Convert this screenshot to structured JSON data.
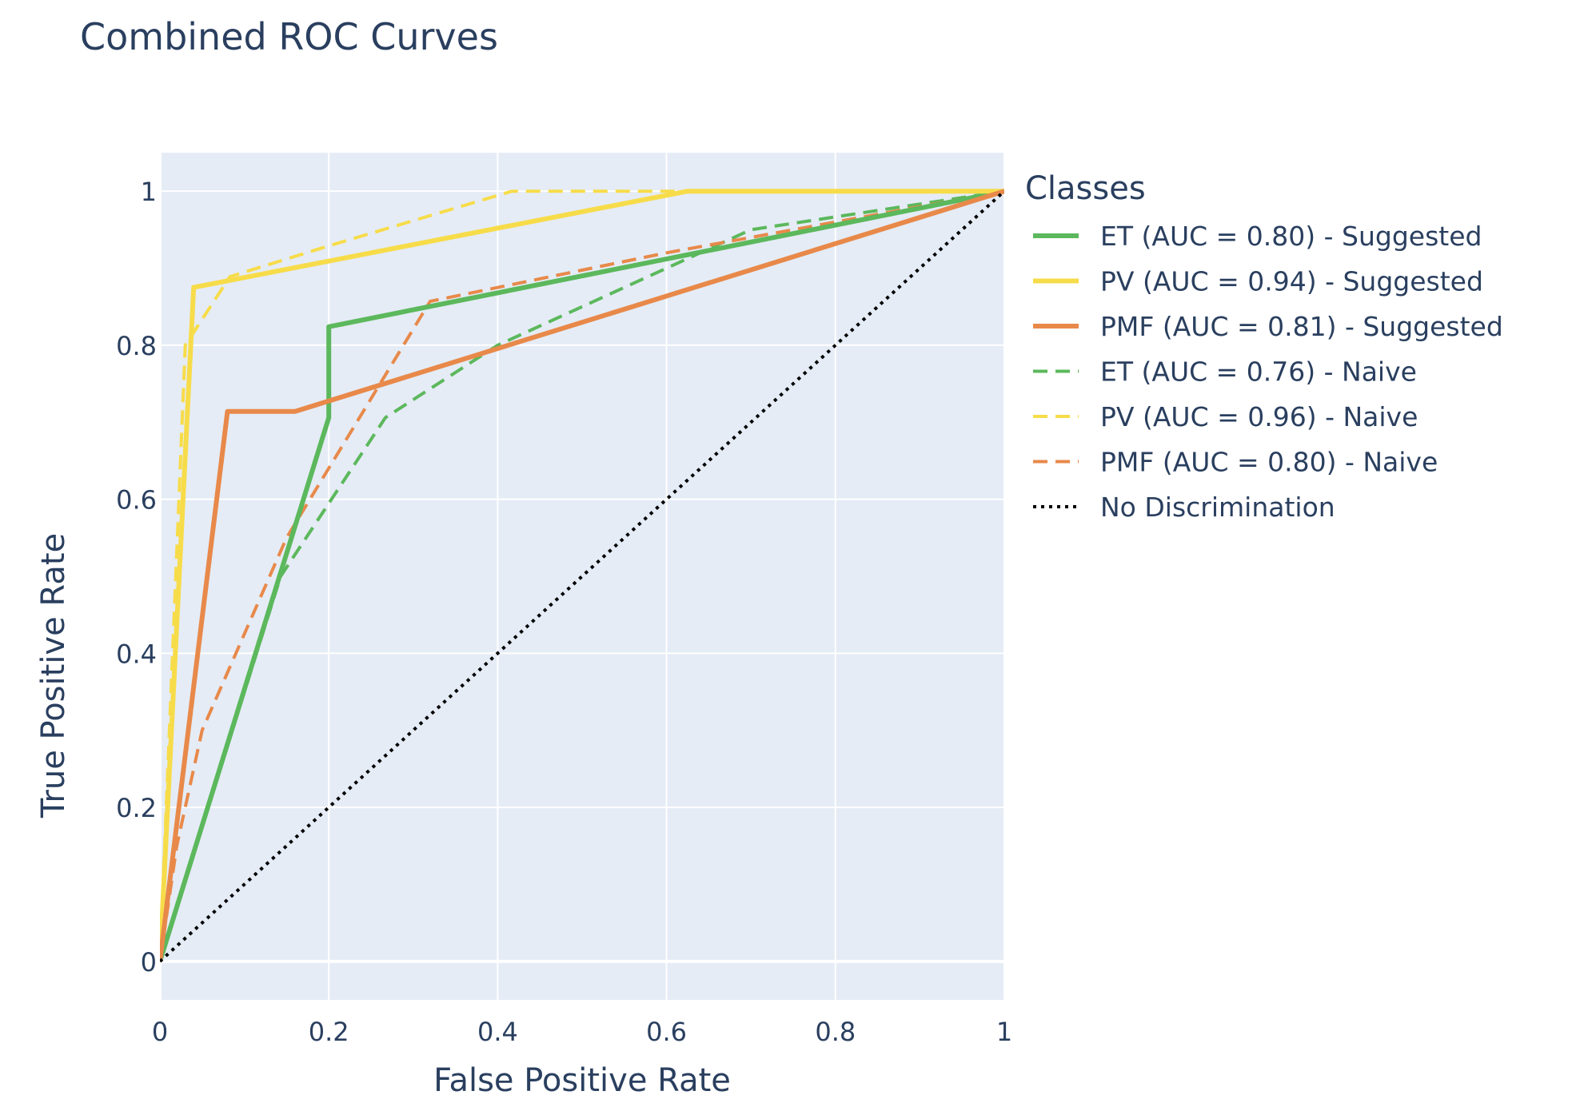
{
  "chart_data": {
    "type": "line",
    "title": "Combined ROC Curves",
    "xlabel": "False Positive Rate",
    "ylabel": "True Positive Rate",
    "xlim": [
      0,
      1
    ],
    "ylim": [
      -0.05,
      1.05
    ],
    "xticks": [
      0,
      0.2,
      0.4,
      0.6,
      0.8,
      1
    ],
    "xtick_labels": [
      "0",
      "0.2",
      "0.4",
      "0.6",
      "0.8",
      "1"
    ],
    "yticks": [
      0,
      0.2,
      0.4,
      0.6,
      0.8,
      1
    ],
    "ytick_labels": [
      "0",
      "0.2",
      "0.4",
      "0.6",
      "0.8",
      "1"
    ],
    "grid": true,
    "plot_background": "#e5ecf6",
    "legend": {
      "title": "Classes",
      "placement": "right"
    },
    "series": [
      {
        "name": "ET (AUC = 0.80) - Suggested",
        "color": "#5cb85c",
        "dash": "solid",
        "x": [
          0,
          0.2,
          0.2,
          1
        ],
        "y": [
          0,
          0.706,
          0.824,
          1
        ]
      },
      {
        "name": "PV (AUC = 0.94) - Suggested",
        "color": "#f7dc4a",
        "dash": "solid",
        "x": [
          0,
          0.04,
          0.625,
          1
        ],
        "y": [
          0,
          0.875,
          1,
          1
        ]
      },
      {
        "name": "PMF (AUC = 0.81) - Suggested",
        "color": "#e8894a",
        "dash": "solid",
        "x": [
          0,
          0.08,
          0.16,
          1
        ],
        "y": [
          0,
          0.714,
          0.714,
          1
        ]
      },
      {
        "name": "ET (AUC = 0.76) - Naive",
        "color": "#5cb85c",
        "dash": "dash",
        "x": [
          0,
          0.143,
          0.267,
          0.4,
          0.6,
          0.7,
          1
        ],
        "y": [
          0,
          0.5,
          0.706,
          0.8,
          0.9,
          0.95,
          1
        ]
      },
      {
        "name": "PV (AUC = 0.96) - Naive",
        "color": "#f7dc4a",
        "dash": "dash",
        "x": [
          0,
          0.03,
          0.083,
          0.2,
          0.417,
          1
        ],
        "y": [
          0,
          0.8,
          0.889,
          0.929,
          1,
          1
        ]
      },
      {
        "name": "PMF (AUC = 0.80) - Naive",
        "color": "#e8894a",
        "dash": "dash",
        "x": [
          0,
          0.02,
          0.05,
          0.15,
          0.32,
          0.6,
          1
        ],
        "y": [
          0,
          0.15,
          0.3,
          0.55,
          0.857,
          0.92,
          1
        ]
      },
      {
        "name": "No Discrimination",
        "color": "#000000",
        "dash": "dot",
        "x": [
          0,
          1
        ],
        "y": [
          0,
          1
        ]
      }
    ]
  }
}
